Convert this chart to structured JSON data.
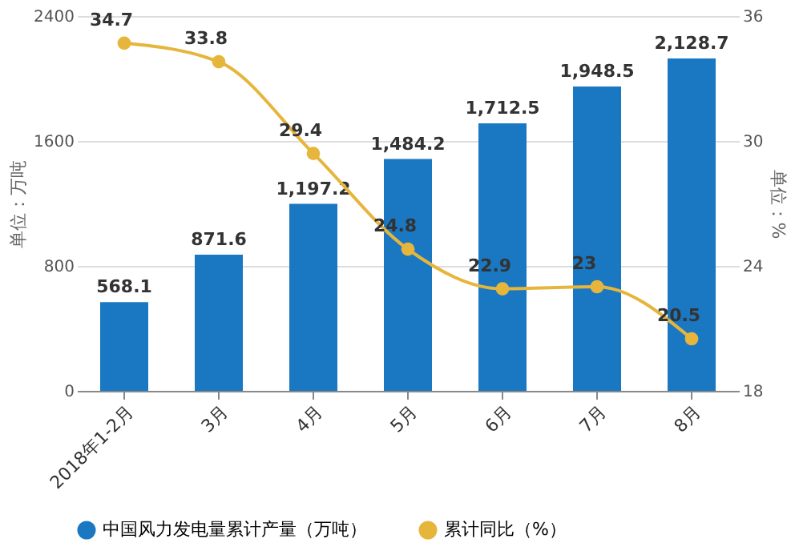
{
  "chart_data": {
    "type": "bar",
    "ylabel": "单位：万吨",
    "y2label": "单位：%",
    "categories": [
      "2018年1-2月",
      "3月",
      "4月",
      "5月",
      "6月",
      "7月",
      "8月"
    ],
    "series": [
      {
        "name": "中国风力发电量累计产量（万吨）",
        "color": "#1a78c2",
        "values": [
          568.1,
          871.6,
          1197.2,
          1484.2,
          1712.5,
          1948.5,
          2128.7
        ],
        "value_labels": [
          "568.1",
          "871.6",
          "1,197.2",
          "1,484.2",
          "1,712.5",
          "1,948.5",
          "2,128.7"
        ]
      },
      {
        "name": "累计同比（%）",
        "type": "line",
        "axis": "y2",
        "color": "#e6b53c",
        "marker": "circle",
        "values": [
          34.7,
          33.8,
          29.4,
          24.8,
          22.9,
          23,
          20.5
        ],
        "value_labels": [
          "34.7",
          "33.8",
          "29.4",
          "24.8",
          "22.9",
          "23",
          "20.5"
        ]
      }
    ],
    "ylim": [
      0,
      2400
    ],
    "yticks": [
      0,
      800,
      1600,
      2400
    ],
    "y2lim": [
      18,
      36
    ],
    "y2ticks": [
      18,
      24,
      30,
      36
    ],
    "grid": "y",
    "legend": "bottom"
  }
}
